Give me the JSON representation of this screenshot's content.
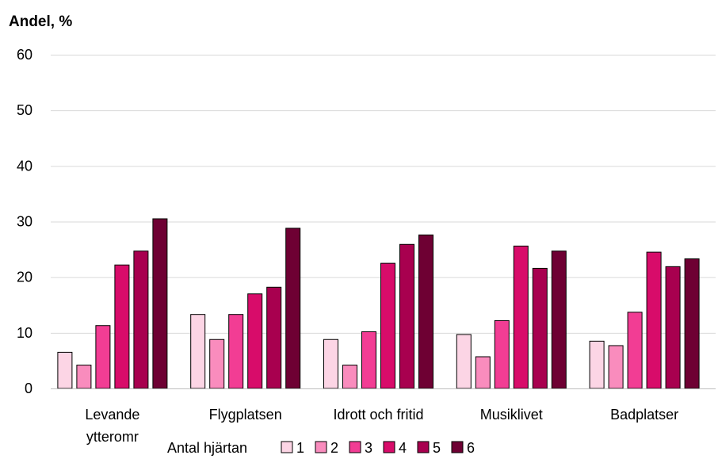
{
  "chart_data": {
    "type": "bar",
    "title": "",
    "xlabel": "",
    "ylabel": "Andel, %",
    "ylim": [
      0,
      60
    ],
    "yticks": [
      0,
      10,
      20,
      30,
      40,
      50,
      60
    ],
    "grid": true,
    "legend_position": "bottom",
    "legend_title": "Antal hjärtan",
    "categories": [
      [
        "Levande",
        "ytteromr"
      ],
      [
        "Flygplatsen"
      ],
      [
        "Idrott och fritid"
      ],
      [
        "Musiklivet"
      ],
      [
        "Badplatser"
      ]
    ],
    "series": [
      {
        "name": "1",
        "color": "#fcd5e5",
        "values": [
          6.5,
          13.3,
          8.8,
          9.7,
          8.5
        ]
      },
      {
        "name": "2",
        "color": "#f98cbd",
        "values": [
          4.2,
          8.8,
          4.2,
          5.7,
          7.7
        ]
      },
      {
        "name": "3",
        "color": "#f23d94",
        "values": [
          11.3,
          13.3,
          10.2,
          12.2,
          13.7
        ]
      },
      {
        "name": "4",
        "color": "#d80c6a",
        "values": [
          22.2,
          17.0,
          22.5,
          25.6,
          24.5
        ]
      },
      {
        "name": "5",
        "color": "#a8004f",
        "values": [
          24.7,
          18.2,
          25.9,
          21.6,
          21.9
        ]
      },
      {
        "name": "6",
        "color": "#6e0033",
        "values": [
          30.5,
          28.8,
          27.6,
          24.7,
          23.3
        ]
      }
    ]
  }
}
